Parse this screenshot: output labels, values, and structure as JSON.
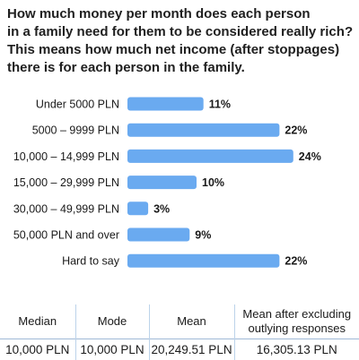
{
  "title_lines": [
    "How much money per month does each person",
    "in a family need for them to be considered really rich?",
    "This means how much net income (after stoppages)",
    "there is for each person in the family."
  ],
  "chart_data": {
    "type": "bar",
    "orientation": "horizontal",
    "categories": [
      "Under 5000 PLN",
      "5000 – 9999 PLN",
      "10,000 – 14,999 PLN",
      "15,000 – 29,999 PLN",
      "30,000 – 49,999 PLN",
      "50,000 PLN and over",
      "Hard to say"
    ],
    "values": [
      11,
      22,
      24,
      10,
      3,
      9,
      22
    ],
    "value_labels": [
      "11%",
      "22%",
      "24%",
      "10%",
      "3%",
      "9%",
      "22%"
    ],
    "unit": "%",
    "bar_color": "#6aaaf0",
    "grid": false,
    "legend": "none"
  },
  "stats": {
    "headers": [
      "Median",
      "Mode",
      "Mean",
      "Mean after excluding outlying responses"
    ],
    "values": [
      "10,000 PLN",
      "10,000 PLN",
      "20,249.51 PLN",
      "16,305.13 PLN"
    ]
  }
}
